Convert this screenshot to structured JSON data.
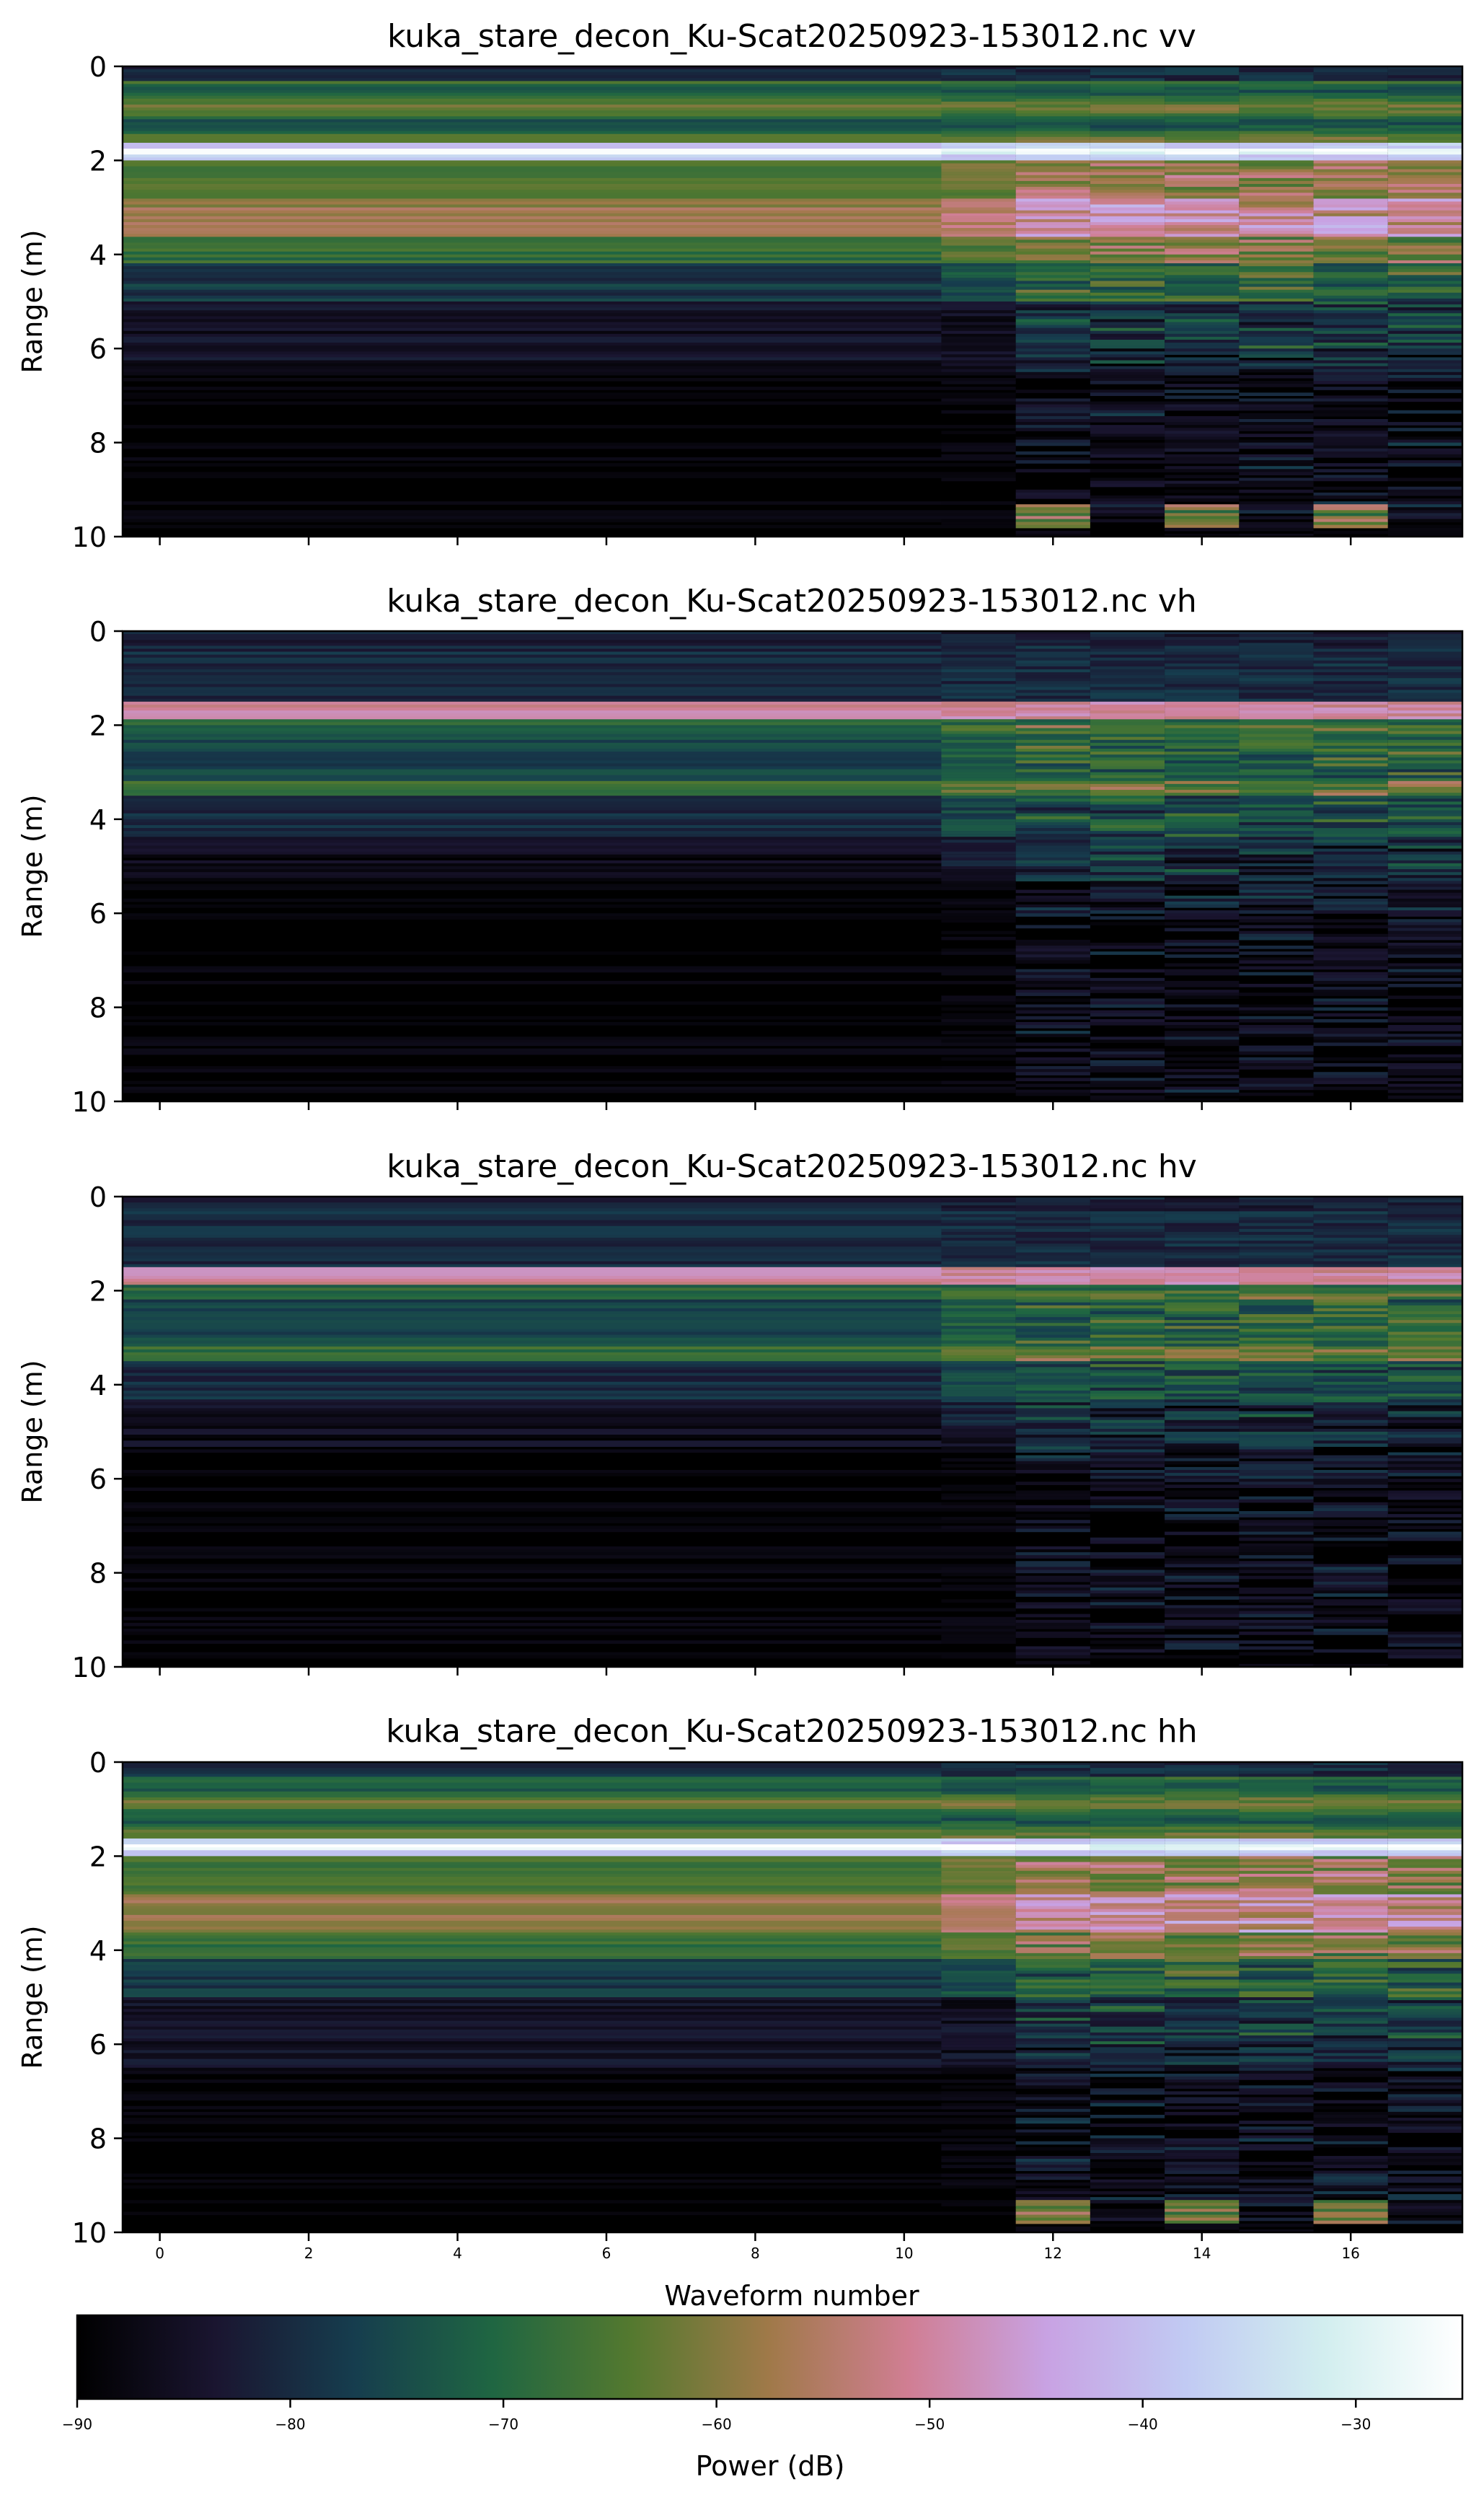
{
  "chart_data": [
    {
      "type": "heatmap",
      "title": "kuka_stare_decon_Ku-Scat20250923-153012.nc vv",
      "ylabel": "Range (m)",
      "xlabel": "",
      "ylim": [
        10,
        0
      ],
      "xlim": [
        -0.5,
        17.5
      ],
      "yticks": [
        "0",
        "2",
        "4",
        "6",
        "8",
        "10"
      ],
      "xticks": [],
      "waveforms": 18,
      "intensity": "strong"
    },
    {
      "type": "heatmap",
      "title": "kuka_stare_decon_Ku-Scat20250923-153012.nc vh",
      "ylabel": "Range (m)",
      "xlabel": "",
      "ylim": [
        10,
        0
      ],
      "xlim": [
        -0.5,
        17.5
      ],
      "yticks": [
        "0",
        "2",
        "4",
        "6",
        "8",
        "10"
      ],
      "xticks": [],
      "waveforms": 18,
      "intensity": "weak"
    },
    {
      "type": "heatmap",
      "title": "kuka_stare_decon_Ku-Scat20250923-153012.nc hv",
      "ylabel": "Range (m)",
      "xlabel": "",
      "ylim": [
        10,
        0
      ],
      "xlim": [
        -0.5,
        17.5
      ],
      "yticks": [
        "0",
        "2",
        "4",
        "6",
        "8",
        "10"
      ],
      "xticks": [],
      "waveforms": 18,
      "intensity": "weak"
    },
    {
      "type": "heatmap",
      "title": "kuka_stare_decon_Ku-Scat20250923-153012.nc hh",
      "ylabel": "Range (m)",
      "xlabel": "Waveform number",
      "ylim": [
        10,
        0
      ],
      "xlim": [
        -0.5,
        17.5
      ],
      "yticks": [
        "0",
        "2",
        "4",
        "6",
        "8",
        "10"
      ],
      "xticks": [
        "0",
        "2",
        "4",
        "6",
        "8",
        "10",
        "12",
        "14",
        "16"
      ],
      "waveforms": 18,
      "intensity": "strong"
    }
  ],
  "colorbar": {
    "label": "Power (dB)",
    "range": [
      -90,
      -25
    ],
    "ticks": [
      "−90",
      "−80",
      "−70",
      "−60",
      "−50",
      "−40",
      "−30"
    ],
    "tick_values": [
      -90,
      -80,
      -70,
      -60,
      -50,
      -40,
      -30
    ],
    "colors": [
      "#000000",
      "#1a1530",
      "#163d4e",
      "#1f6642",
      "#54792f",
      "#a07949",
      "#d07e93",
      "#c8a2e3",
      "#c1caf3",
      "#d2eeef",
      "#ffffff"
    ]
  }
}
